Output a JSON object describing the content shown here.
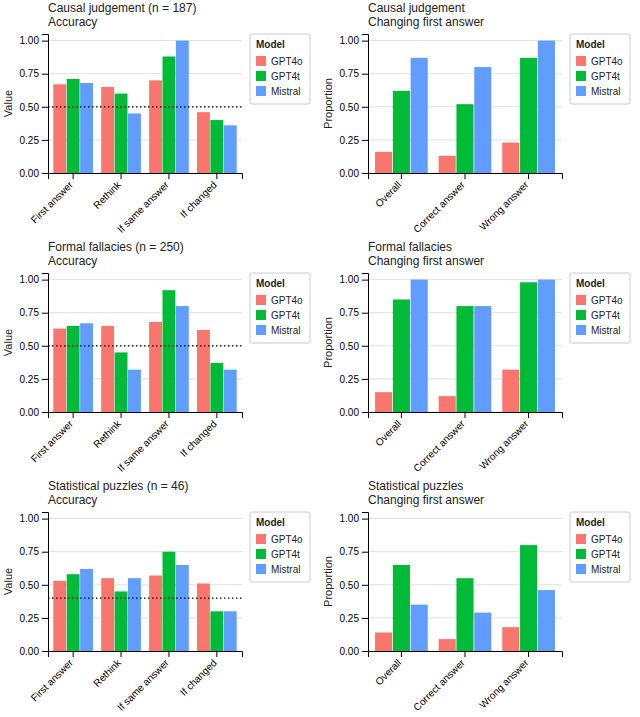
{
  "chart_data": [
    {
      "type": "bar",
      "title": "Causal judgement (n = 187)\nAccuracy",
      "y_label": "Value",
      "categories": [
        "First answer",
        "Rethink",
        "If same answer",
        "If changed"
      ],
      "series": [
        {
          "name": "GPT4o",
          "color": "#F8766D",
          "values": [
            0.67,
            0.65,
            0.7,
            0.46
          ]
        },
        {
          "name": "GPT4t",
          "color": "#00BA38",
          "values": [
            0.71,
            0.6,
            0.88,
            0.4
          ]
        },
        {
          "name": "Mistral",
          "color": "#619CFF",
          "values": [
            0.68,
            0.45,
            1.0,
            0.36
          ]
        }
      ],
      "ylim": [
        0,
        1.05
      ],
      "yticks": [
        {
          "value": 0,
          "label": "0.00"
        },
        {
          "value": 0.25,
          "label": "0.25"
        },
        {
          "value": 0.5,
          "label": "0.50"
        },
        {
          "value": 0.75,
          "label": "0.75"
        },
        {
          "value": 1,
          "label": "1.00"
        }
      ],
      "reference_line": 0.5,
      "grid": true,
      "legend": "right",
      "legend_title": "Model"
    },
    {
      "type": "bar",
      "title": "Causal judgement\nChanging first answer",
      "y_label": "Proportion",
      "categories": [
        "Overall",
        "Correct answer",
        "Wrong answer"
      ],
      "series": [
        {
          "name": "GPT4o",
          "color": "#F8766D",
          "values": [
            0.16,
            0.13,
            0.23
          ]
        },
        {
          "name": "GPT4t",
          "color": "#00BA38",
          "values": [
            0.62,
            0.52,
            0.87
          ]
        },
        {
          "name": "Mistral",
          "color": "#619CFF",
          "values": [
            0.87,
            0.8,
            1.0
          ]
        }
      ],
      "ylim": [
        0,
        1.05
      ],
      "yticks": [
        {
          "value": 0,
          "label": "0.00"
        },
        {
          "value": 0.25,
          "label": "0.25"
        },
        {
          "value": 0.5,
          "label": "0.50"
        },
        {
          "value": 0.75,
          "label": "0.75"
        },
        {
          "value": 1,
          "label": "1.00"
        }
      ],
      "grid": true,
      "legend": "right",
      "legend_title": "Model"
    },
    {
      "type": "bar",
      "title": "Formal fallacies (n = 250)\nAccuracy",
      "y_label": "Value",
      "categories": [
        "First answer",
        "Rethink",
        "If same answer",
        "If changed"
      ],
      "series": [
        {
          "name": "GPT4o",
          "color": "#F8766D",
          "values": [
            0.63,
            0.65,
            0.68,
            0.62
          ]
        },
        {
          "name": "GPT4t",
          "color": "#00BA38",
          "values": [
            0.65,
            0.45,
            0.92,
            0.37
          ]
        },
        {
          "name": "Mistral",
          "color": "#619CFF",
          "values": [
            0.67,
            0.32,
            0.8,
            0.32
          ]
        }
      ],
      "ylim": [
        0,
        1.05
      ],
      "yticks": [
        {
          "value": 0,
          "label": "0.00"
        },
        {
          "value": 0.25,
          "label": "0.25"
        },
        {
          "value": 0.5,
          "label": "0.50"
        },
        {
          "value": 0.75,
          "label": "0.75"
        },
        {
          "value": 1,
          "label": "1.00"
        }
      ],
      "reference_line": 0.5,
      "grid": true,
      "legend": "right",
      "legend_title": "Model"
    },
    {
      "type": "bar",
      "title": "Formal fallacies\nChanging first answer",
      "y_label": "Proportion",
      "categories": [
        "Overall",
        "Correct answer",
        "Wrong answer"
      ],
      "series": [
        {
          "name": "GPT4o",
          "color": "#F8766D",
          "values": [
            0.15,
            0.12,
            0.32
          ]
        },
        {
          "name": "GPT4t",
          "color": "#00BA38",
          "values": [
            0.85,
            0.8,
            0.98
          ]
        },
        {
          "name": "Mistral",
          "color": "#619CFF",
          "values": [
            1.0,
            0.8,
            1.0
          ]
        }
      ],
      "ylim": [
        0,
        1.05
      ],
      "yticks": [
        {
          "value": 0,
          "label": "0.00"
        },
        {
          "value": 0.25,
          "label": "0.25"
        },
        {
          "value": 0.5,
          "label": "0.50"
        },
        {
          "value": 0.75,
          "label": "0.75"
        },
        {
          "value": 1,
          "label": "1.00"
        }
      ],
      "grid": true,
      "legend": "right",
      "legend_title": "Model"
    },
    {
      "type": "bar",
      "title": "Statistical puzzles (n = 46)\nAccuracy",
      "y_label": "Value",
      "categories": [
        "First answer",
        "Rethink",
        "If same answer",
        "If changed"
      ],
      "series": [
        {
          "name": "GPT4o",
          "color": "#F8766D",
          "values": [
            0.53,
            0.55,
            0.57,
            0.51
          ]
        },
        {
          "name": "GPT4t",
          "color": "#00BA38",
          "values": [
            0.58,
            0.45,
            0.75,
            0.3
          ]
        },
        {
          "name": "Mistral",
          "color": "#619CFF",
          "values": [
            0.62,
            0.55,
            0.65,
            0.3
          ]
        }
      ],
      "ylim": [
        0,
        1.05
      ],
      "yticks": [
        {
          "value": 0,
          "label": "0.00"
        },
        {
          "value": 0.25,
          "label": "0.25"
        },
        {
          "value": 0.5,
          "label": "0.50"
        },
        {
          "value": 0.75,
          "label": "0.75"
        },
        {
          "value": 1,
          "label": "1.00"
        }
      ],
      "reference_line": 0.4,
      "grid": true,
      "legend": "right",
      "legend_title": "Model"
    },
    {
      "type": "bar",
      "title": "Statistical puzzles\nChanging first answer",
      "y_label": "Proportion",
      "categories": [
        "Overall",
        "Correct answer",
        "Wrong answer"
      ],
      "series": [
        {
          "name": "GPT4o",
          "color": "#F8766D",
          "values": [
            0.14,
            0.09,
            0.18
          ]
        },
        {
          "name": "GPT4t",
          "color": "#00BA38",
          "values": [
            0.65,
            0.55,
            0.8
          ]
        },
        {
          "name": "Mistral",
          "color": "#619CFF",
          "values": [
            0.35,
            0.29,
            0.46
          ]
        }
      ],
      "ylim": [
        0,
        1.05
      ],
      "yticks": [
        {
          "value": 0,
          "label": "0.00"
        },
        {
          "value": 0.25,
          "label": "0.25"
        },
        {
          "value": 0.5,
          "label": "0.50"
        },
        {
          "value": 0.75,
          "label": "0.75"
        },
        {
          "value": 1,
          "label": "1.00"
        }
      ],
      "grid": true,
      "legend": "right",
      "legend_title": "Model"
    }
  ]
}
